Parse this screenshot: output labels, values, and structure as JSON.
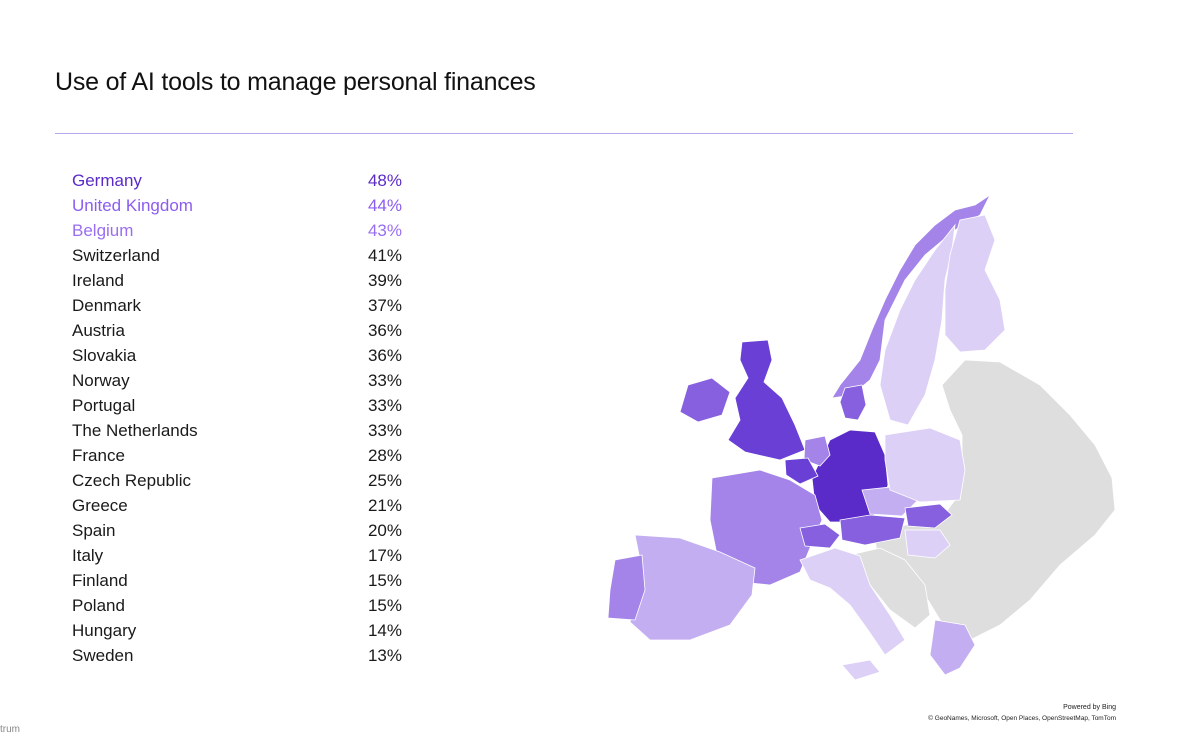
{
  "title": "Use of AI tools to manage personal finances",
  "ranking": [
    {
      "country": "Germany",
      "value": "48%"
    },
    {
      "country": "United Kingdom",
      "value": "44%"
    },
    {
      "country": "Belgium",
      "value": "43%"
    },
    {
      "country": "Switzerland",
      "value": "41%"
    },
    {
      "country": "Ireland",
      "value": "39%"
    },
    {
      "country": "Denmark",
      "value": "37%"
    },
    {
      "country": "Austria",
      "value": "36%"
    },
    {
      "country": "Slovakia",
      "value": "36%"
    },
    {
      "country": "Norway",
      "value": "33%"
    },
    {
      "country": "Portugal",
      "value": "33%"
    },
    {
      "country": "The Netherlands",
      "value": "33%"
    },
    {
      "country": "France",
      "value": "28%"
    },
    {
      "country": "Czech Republic",
      "value": "25%"
    },
    {
      "country": "Greece",
      "value": "21%"
    },
    {
      "country": "Spain",
      "value": "20%"
    },
    {
      "country": "Italy",
      "value": "17%"
    },
    {
      "country": "Finland",
      "value": "15%"
    },
    {
      "country": "Poland",
      "value": "15%"
    },
    {
      "country": "Hungary",
      "value": "14%"
    },
    {
      "country": "Sweden",
      "value": "13%"
    }
  ],
  "highlight_colors": [
    "#5a2bc8",
    "#8b5cf0",
    "#9a6ef2"
  ],
  "map": {
    "no_data_color": "#dedede",
    "color_scale": [
      "#ddd0f7",
      "#c4aef2",
      "#a484e8",
      "#8660df",
      "#6a3fd6",
      "#5a2bc8"
    ]
  },
  "attribution": {
    "powered": "Powered by Bing",
    "sources": "© GeoNames, Microsoft, Open Places, OpenStreetMap, TomTom"
  },
  "footer_fragment": "trum"
}
